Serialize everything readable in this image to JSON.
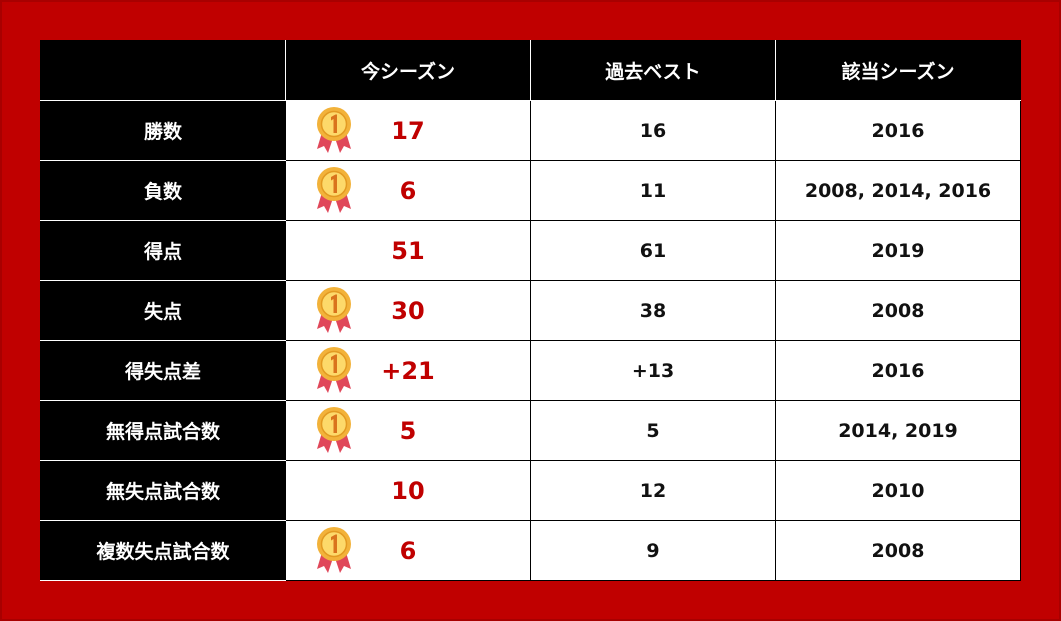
{
  "table": {
    "columns": [
      "今シーズン",
      "過去ベスト",
      "該当シーズン"
    ],
    "rows": [
      [
        "勝数",
        17,
        16,
        2016
      ],
      [
        "負数",
        6,
        11,
        "2008, 2014, 2016"
      ],
      [
        "得点",
        51,
        61,
        2019
      ],
      [
        "失点",
        30,
        38,
        2008
      ],
      [
        "得失点差",
        "+21",
        "+13",
        2016
      ],
      [
        "無得点試合数",
        5,
        5,
        "2014, 2019"
      ],
      [
        "無失点試合数",
        10,
        12,
        2010
      ],
      [
        "複数失点試合数",
        6,
        9,
        2008
      ]
    ]
  }
}
